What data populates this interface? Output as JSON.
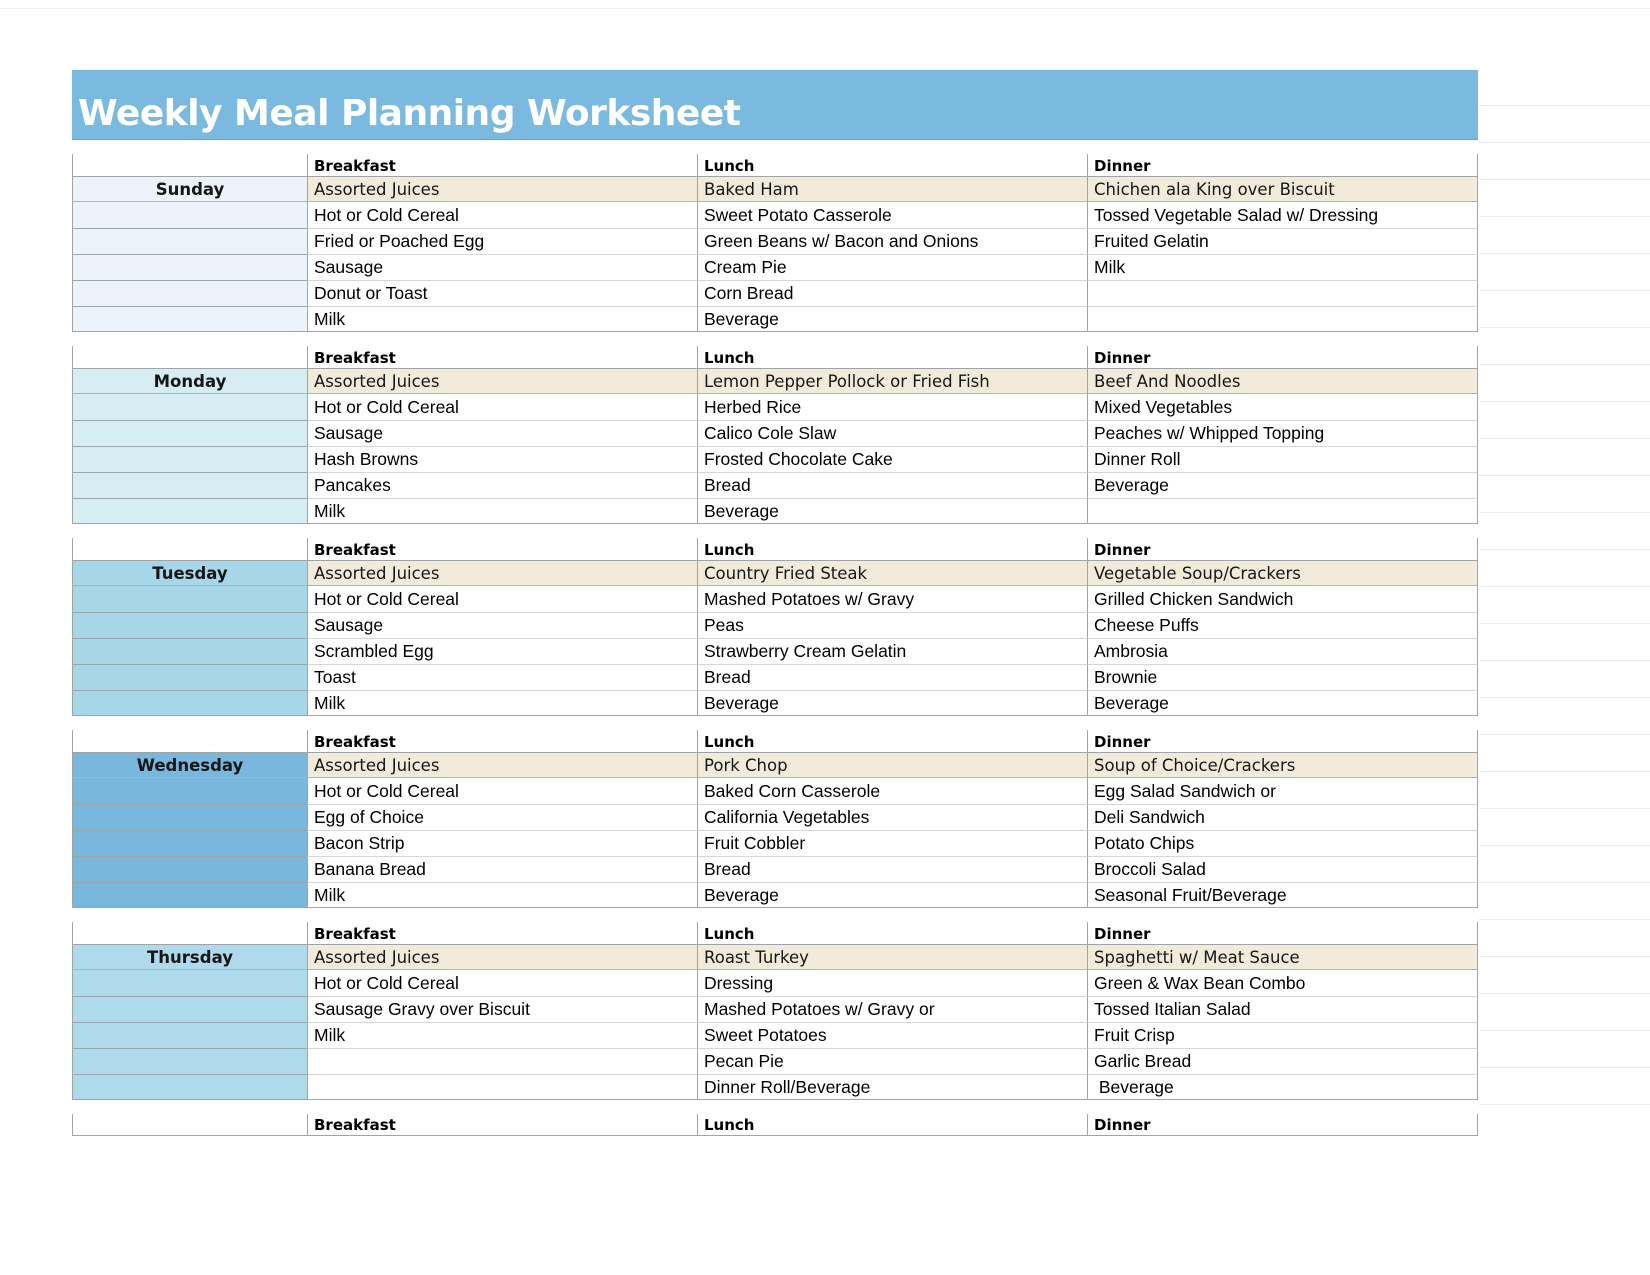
{
  "title": "Weekly Meal Planning Worksheet",
  "meal_headers": {
    "breakfast": "Breakfast",
    "lunch": "Lunch",
    "dinner": "Dinner"
  },
  "colors": {
    "title_bar": "#7ABAE0",
    "highlight_row": "#F1ECD9",
    "sunday": "#EDF3FA",
    "monday": "#D7EDF4",
    "tuesday": "#A7D6E8",
    "wednesday": "#79B7DD",
    "thursday": "#AFDAEC"
  },
  "days": [
    {
      "name": "Sunday",
      "breakfast": [
        "Assorted Juices",
        "Hot or Cold Cereal",
        "Fried or Poached Egg",
        "Sausage",
        "Donut or Toast",
        "Milk"
      ],
      "lunch": [
        "Baked Ham",
        "Sweet Potato Casserole",
        "Green Beans w/ Bacon and Onions",
        "Cream Pie",
        "Corn Bread",
        "Beverage"
      ],
      "dinner": [
        "Chichen ala King over Biscuit",
        "Tossed Vegetable Salad w/ Dressing",
        "Fruited Gelatin",
        "Milk",
        "",
        ""
      ]
    },
    {
      "name": "Monday",
      "breakfast": [
        "Assorted Juices",
        "Hot or Cold Cereal",
        "Sausage",
        "Hash Browns",
        "Pancakes",
        "Milk"
      ],
      "lunch": [
        "Lemon Pepper Pollock or Fried Fish",
        "Herbed Rice",
        "Calico Cole Slaw",
        "Frosted Chocolate Cake",
        "Bread",
        "Beverage"
      ],
      "dinner": [
        "Beef And Noodles",
        "Mixed Vegetables",
        "Peaches w/ Whipped Topping",
        "Dinner Roll",
        "Beverage",
        ""
      ]
    },
    {
      "name": "Tuesday",
      "breakfast": [
        "Assorted Juices",
        "Hot or Cold Cereal",
        "Sausage",
        "Scrambled Egg",
        "Toast",
        "Milk"
      ],
      "lunch": [
        "Country Fried Steak",
        "Mashed Potatoes w/ Gravy",
        "Peas",
        "Strawberry Cream Gelatin",
        "Bread",
        "Beverage"
      ],
      "dinner": [
        "Vegetable Soup/Crackers",
        "Grilled Chicken Sandwich",
        "Cheese Puffs",
        "Ambrosia",
        "Brownie",
        "Beverage"
      ]
    },
    {
      "name": "Wednesday",
      "breakfast": [
        "Assorted Juices",
        "Hot or Cold Cereal",
        "Egg of Choice",
        "Bacon Strip",
        "Banana Bread",
        "Milk"
      ],
      "lunch": [
        "Pork Chop",
        "Baked Corn Casserole",
        "California Vegetables",
        "Fruit Cobbler",
        "Bread",
        "Beverage"
      ],
      "dinner": [
        "Soup of Choice/Crackers",
        "Egg Salad Sandwich or",
        "Deli Sandwich",
        "Potato Chips",
        "Broccoli Salad",
        "Seasonal Fruit/Beverage"
      ]
    },
    {
      "name": "Thursday",
      "breakfast": [
        "Assorted Juices",
        "Hot or Cold Cereal",
        "Sausage Gravy over Biscuit",
        "Milk",
        "",
        ""
      ],
      "lunch": [
        "Roast Turkey",
        "Dressing",
        "Mashed Potatoes w/ Gravy or",
        "Sweet Potatoes",
        "Pecan Pie",
        "Dinner Roll/Beverage"
      ],
      "dinner": [
        "Spaghetti w/ Meat Sauce",
        "Green & Wax Bean Combo",
        "Tossed Italian Salad",
        "Fruit Crisp",
        "Garlic Bread",
        " Beverage"
      ]
    }
  ]
}
